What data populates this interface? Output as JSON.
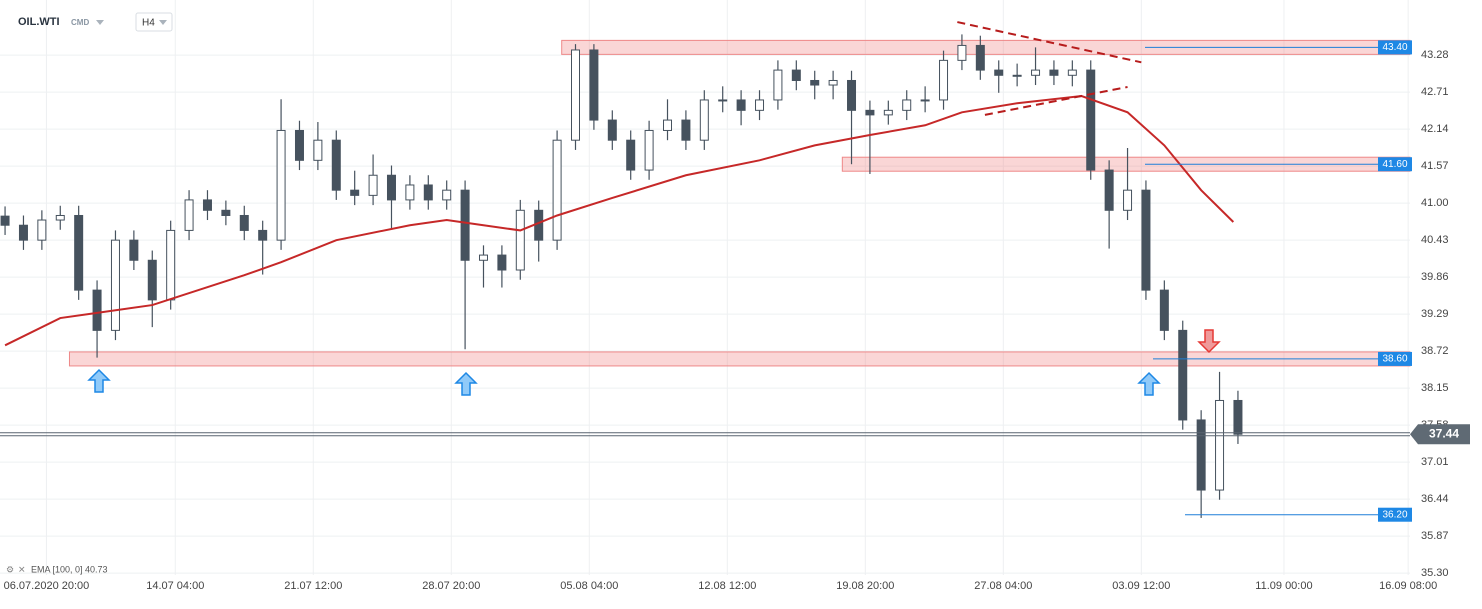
{
  "chart_data": {
    "type": "candlestick",
    "title": "OIL.WTI",
    "subtitle": "CMD",
    "timeframe": "H4",
    "x": [
      0,
      4,
      8,
      12,
      16,
      20,
      24,
      28,
      32,
      36,
      40,
      44,
      48,
      52,
      56,
      60,
      64,
      68,
      72,
      76,
      80,
      84,
      88,
      92,
      96,
      100,
      104,
      108,
      112,
      116,
      120,
      124,
      128,
      132,
      136,
      140,
      144,
      148,
      152,
      156,
      160,
      164,
      168,
      172,
      176,
      180,
      184,
      188,
      192,
      196,
      200,
      204,
      208,
      212,
      216,
      220,
      224,
      228,
      232,
      236,
      240,
      244,
      248,
      252,
      256,
      260,
      264,
      268
    ],
    "open": [
      40.8,
      40.66,
      40.43,
      40.74,
      40.81,
      39.66,
      39.04,
      40.43,
      40.12,
      39.51,
      40.58,
      41.05,
      40.89,
      40.81,
      40.58,
      40.43,
      42.12,
      41.66,
      41.97,
      41.2,
      41.12,
      41.43,
      41.05,
      41.28,
      41.05,
      41.2,
      40.12,
      40.2,
      39.97,
      40.89,
      40.43,
      41.97,
      43.36,
      42.28,
      41.97,
      41.51,
      42.12,
      42.28,
      41.97,
      42.59,
      42.59,
      42.43,
      42.59,
      43.05,
      42.89,
      42.82,
      42.89,
      42.43,
      42.36,
      42.43,
      42.59,
      42.59,
      43.2,
      43.43,
      43.05,
      42.97,
      42.97,
      43.05,
      42.97,
      43.05,
      41.51,
      40.89,
      41.2,
      39.66,
      39.04,
      37.66,
      36.58,
      37.96
    ],
    "high": [
      40.95,
      40.81,
      40.89,
      40.96,
      40.96,
      39.81,
      40.58,
      40.58,
      40.27,
      40.73,
      41.2,
      41.2,
      41.04,
      40.96,
      40.73,
      42.6,
      42.27,
      42.25,
      42.12,
      41.5,
      41.75,
      41.58,
      41.43,
      41.43,
      41.35,
      41.35,
      40.35,
      40.35,
      41.05,
      41.04,
      42.12,
      43.45,
      43.45,
      42.43,
      42.12,
      42.27,
      42.6,
      42.43,
      42.74,
      42.8,
      42.74,
      42.74,
      43.2,
      43.2,
      43.04,
      43.04,
      43.04,
      42.58,
      42.58,
      42.74,
      42.8,
      43.35,
      43.6,
      43.58,
      43.2,
      43.15,
      43.4,
      43.2,
      43.2,
      43.2,
      41.66,
      41.85,
      41.35,
      39.81,
      39.19,
      37.81,
      38.4,
      38.11
    ],
    "low": [
      40.51,
      40.28,
      40.28,
      40.59,
      39.51,
      38.62,
      38.89,
      39.97,
      39.09,
      39.36,
      40.43,
      40.74,
      40.66,
      40.43,
      39.9,
      40.28,
      41.51,
      41.51,
      41.05,
      40.97,
      40.97,
      40.6,
      40.9,
      40.9,
      40.9,
      38.75,
      39.7,
      39.7,
      39.82,
      40.1,
      40.28,
      41.82,
      42.13,
      41.82,
      41.36,
      41.36,
      41.97,
      41.82,
      41.82,
      42.4,
      42.2,
      42.28,
      42.44,
      42.74,
      42.6,
      42.6,
      41.6,
      41.45,
      42.21,
      42.28,
      42.4,
      42.44,
      43.05,
      42.9,
      42.7,
      42.8,
      42.82,
      42.82,
      42.8,
      41.36,
      40.3,
      40.74,
      39.51,
      38.89,
      37.51,
      36.15,
      36.43,
      37.29
    ],
    "close": [
      40.66,
      40.43,
      40.74,
      40.81,
      39.66,
      39.04,
      40.43,
      40.12,
      39.51,
      40.58,
      41.05,
      40.89,
      40.81,
      40.58,
      40.43,
      42.12,
      41.66,
      41.97,
      41.2,
      41.12,
      41.43,
      41.05,
      41.28,
      41.05,
      41.2,
      40.12,
      40.2,
      39.97,
      40.89,
      40.43,
      41.97,
      43.36,
      42.28,
      41.97,
      41.51,
      42.12,
      42.28,
      41.97,
      42.59,
      42.59,
      42.43,
      42.59,
      43.05,
      42.89,
      42.82,
      42.89,
      42.43,
      42.36,
      42.43,
      42.59,
      42.59,
      43.2,
      43.43,
      43.05,
      42.97,
      42.97,
      43.05,
      42.97,
      43.05,
      41.51,
      40.89,
      41.2,
      39.66,
      39.04,
      37.66,
      36.58,
      37.96,
      37.44
    ],
    "color_up": "#ffffff",
    "color_down": "#46525e",
    "series": [
      {
        "name": "EMA [100, 0] 40.73",
        "color": "#c62828",
        "x": [
          0,
          12,
          20,
          32,
          52,
          60,
          72,
          88,
          96,
          104,
          112,
          120,
          132,
          148,
          164,
          176,
          188,
          200,
          208,
          220,
          234,
          244,
          252,
          260,
          267
        ],
        "values": [
          38.81,
          39.23,
          39.31,
          39.43,
          39.89,
          40.09,
          40.43,
          40.66,
          40.74,
          40.66,
          40.58,
          40.81,
          41.08,
          41.43,
          41.66,
          41.89,
          42.05,
          42.2,
          42.4,
          42.54,
          42.65,
          42.4,
          41.89,
          41.2,
          40.71
        ]
      }
    ],
    "zones": [
      {
        "value": 43.4,
        "x": 121
      },
      {
        "value": 41.6,
        "x": 182
      },
      {
        "value": 38.6,
        "x": 14
      }
    ],
    "levels": [
      {
        "value": 43.4,
        "label": "43.40"
      },
      {
        "value": 41.6,
        "label": "41.60"
      },
      {
        "value": 38.6,
        "label": "38.60"
      },
      {
        "value": 36.2,
        "label": "36.20"
      }
    ],
    "trendlines": [
      {
        "x": [
          207,
          247
        ],
        "values": [
          43.79,
          43.17
        ]
      },
      {
        "x": [
          213,
          244
        ],
        "values": [
          42.36,
          42.79
        ]
      }
    ],
    "current_price": 37.44,
    "xlim": [
      -1.1,
      305.4
    ],
    "xticks": [
      {
        "value": 9,
        "label": "06.07.2020 20:00"
      },
      {
        "value": 37,
        "label": "14.07 04:00"
      },
      {
        "value": 67,
        "label": "21.07 12:00"
      },
      {
        "value": 97,
        "label": "28.07 20:00"
      },
      {
        "value": 127,
        "label": "05.08 04:00"
      },
      {
        "value": 157,
        "label": "12.08 12:00"
      },
      {
        "value": 187,
        "label": "19.08 20:00"
      },
      {
        "value": 217,
        "label": "27.08 04:00"
      },
      {
        "value": 247,
        "label": "03.09 12:00"
      },
      {
        "value": 278,
        "label": "11.09 00:00"
      },
      {
        "value": 305,
        "label": "16.09 08:00"
      }
    ],
    "ylim": [
      35.04,
      44.13
    ],
    "yticks": [
      {
        "value": 35.3,
        "label": "35.30"
      },
      35.87,
      36.44,
      37.01,
      37.58,
      38.15,
      38.72,
      39.29,
      39.86,
      40.43,
      {
        "value": 41,
        "label": "41.00"
      },
      41.57,
      42.14,
      42.71,
      43.28
    ],
    "grid": true
  }
}
